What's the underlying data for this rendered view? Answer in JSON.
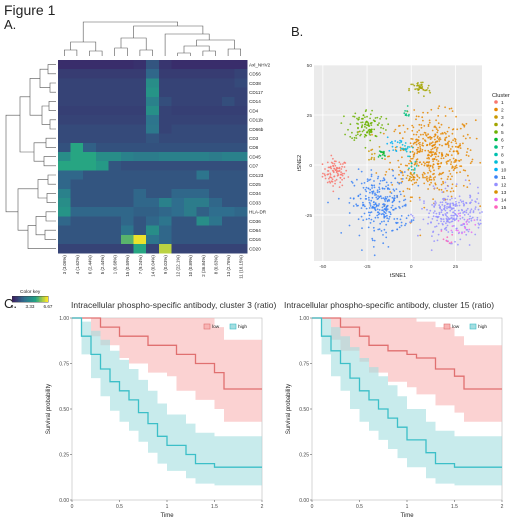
{
  "figure_title": "Figure 1",
  "panels": {
    "a": {
      "letter": "A."
    },
    "b": {
      "letter": "B."
    },
    "c": {
      "letter": "C."
    }
  },
  "chart_data": [
    {
      "type": "heatmap",
      "row_labels": [
        "Axl_NHV2",
        "CD56",
        "CD38",
        "CD117",
        "CD14",
        "CD4",
        "CD11b",
        "CD66b",
        "CD3",
        "CD8",
        "CD45",
        "CD7",
        "CD123",
        "CD25",
        "CD34",
        "CD33",
        "HLA-DR",
        "CD36",
        "CD64",
        "CD16",
        "CD20"
      ],
      "col_labels": [
        "3 (3.06%)",
        "4 (1.62%)",
        "6 (2.44%)",
        "5 (2.44%)",
        "1 (6.68%)",
        "15 (0.59%)",
        "7 (9.24%)",
        "14 (0.04%)",
        "9 (0.03%)",
        "12 (22.1%)",
        "10 (0.89%)",
        "2 (36.84%)",
        "8 (0.63%)",
        "13 (2.76%)",
        "11 (16.15%)"
      ],
      "values": [
        [
          0.4,
          0.4,
          0.4,
          0.4,
          0.4,
          0.4,
          0.5,
          1.5,
          0.6,
          0.4,
          0.4,
          0.4,
          0.4,
          0.4,
          0.4
        ],
        [
          0.8,
          0.8,
          0.8,
          0.8,
          0.8,
          0.8,
          0.8,
          2.0,
          0.8,
          0.8,
          0.8,
          0.8,
          0.8,
          0.8,
          1.0
        ],
        [
          1.0,
          1.0,
          1.0,
          1.0,
          1.0,
          1.0,
          1.0,
          3.5,
          1.0,
          1.0,
          1.0,
          1.0,
          1.0,
          1.0,
          1.2
        ],
        [
          1.0,
          1.0,
          1.0,
          1.0,
          1.0,
          1.0,
          1.0,
          3.8,
          1.0,
          1.0,
          1.0,
          1.0,
          1.0,
          1.0,
          1.0
        ],
        [
          1.0,
          1.0,
          1.0,
          1.0,
          1.0,
          1.0,
          1.0,
          3.0,
          1.3,
          1.0,
          1.0,
          1.0,
          1.0,
          1.3,
          1.0
        ],
        [
          0.9,
          0.9,
          0.9,
          0.9,
          0.9,
          0.9,
          0.9,
          3.6,
          1.0,
          0.9,
          0.9,
          0.9,
          0.9,
          0.9,
          0.9
        ],
        [
          1.0,
          1.0,
          1.0,
          1.0,
          1.0,
          1.0,
          1.0,
          2.5,
          1.0,
          1.0,
          1.0,
          1.0,
          1.0,
          1.0,
          1.0
        ],
        [
          1.2,
          1.2,
          1.2,
          1.2,
          1.2,
          1.2,
          1.2,
          2.6,
          1.0,
          1.2,
          1.2,
          1.2,
          1.2,
          1.2,
          1.2
        ],
        [
          1.2,
          1.2,
          1.2,
          1.2,
          1.2,
          1.2,
          1.2,
          1.5,
          1.2,
          1.2,
          1.2,
          1.2,
          1.2,
          1.2,
          1.2
        ],
        [
          1.4,
          4.5,
          1.8,
          1.4,
          1.4,
          1.4,
          1.4,
          1.4,
          1.4,
          1.4,
          1.4,
          1.4,
          1.4,
          1.4,
          1.4
        ],
        [
          3.5,
          4.5,
          4.5,
          3.5,
          3.5,
          3.0,
          2.8,
          2.8,
          3.0,
          3.0,
          3.0,
          3.0,
          2.8,
          3.0,
          3.0
        ],
        [
          4.5,
          4.5,
          4.5,
          4.0,
          1.5,
          1.3,
          1.3,
          1.3,
          1.3,
          1.3,
          1.3,
          1.3,
          1.3,
          1.3,
          1.3
        ],
        [
          2.0,
          2.0,
          1.5,
          1.5,
          1.5,
          1.5,
          1.5,
          1.5,
          1.5,
          1.5,
          1.5,
          2.5,
          1.5,
          1.5,
          1.5
        ],
        [
          2.0,
          1.5,
          1.5,
          1.5,
          1.5,
          1.5,
          1.5,
          1.5,
          1.5,
          1.5,
          1.5,
          1.5,
          1.5,
          1.5,
          1.5
        ],
        [
          3.0,
          1.5,
          1.5,
          1.5,
          1.5,
          1.5,
          2.0,
          1.5,
          1.5,
          2.0,
          2.0,
          2.0,
          1.5,
          1.5,
          1.5
        ],
        [
          3.5,
          1.5,
          1.5,
          1.5,
          1.5,
          1.5,
          2.0,
          2.0,
          3.0,
          2.2,
          2.8,
          2.8,
          2.0,
          1.5,
          1.5
        ],
        [
          3.8,
          2.0,
          2.0,
          2.0,
          2.0,
          2.0,
          1.8,
          1.8,
          2.0,
          2.2,
          2.8,
          1.8,
          2.2,
          2.2,
          2.0
        ],
        [
          2.0,
          1.5,
          1.5,
          1.5,
          1.5,
          2.0,
          1.5,
          2.0,
          2.5,
          1.5,
          1.5,
          3.5,
          2.5,
          1.5,
          1.5
        ],
        [
          1.5,
          1.5,
          1.5,
          1.5,
          1.5,
          2.5,
          1.5,
          3.5,
          2.0,
          1.5,
          1.5,
          1.5,
          1.5,
          1.5,
          1.5
        ],
        [
          1.5,
          1.5,
          1.5,
          1.5,
          1.5,
          5.0,
          6.5,
          2.5,
          2.0,
          1.5,
          1.5,
          1.5,
          1.5,
          1.5,
          1.5
        ],
        [
          1.0,
          1.0,
          1.0,
          1.0,
          1.0,
          1.0,
          4.5,
          1.0,
          6.0,
          1.0,
          1.0,
          1.0,
          1.0,
          1.0,
          1.0
        ]
      ],
      "color_key": {
        "title": "Color key",
        "ticks": [
          "0",
          "3.33",
          "6.67"
        ],
        "range": [
          0,
          6.67
        ],
        "colors": [
          "#3b1f63",
          "#2f6f8e",
          "#22a384",
          "#fde725"
        ]
      }
    },
    {
      "type": "scatter",
      "xlabel": "tSNE1",
      "ylabel": "tSNE2",
      "xlim": [
        -55,
        40
      ],
      "ylim": [
        -48,
        50
      ],
      "x_ticks": [
        "-50",
        "-25",
        "0",
        "25"
      ],
      "y_ticks": [
        "50",
        "25",
        "0",
        "-25"
      ],
      "legend": {
        "title": "Cluster",
        "placement": "right",
        "entries": [
          "1",
          "2",
          "3",
          "4",
          "5",
          "6",
          "7",
          "8",
          "9",
          "10",
          "11",
          "12",
          "13",
          "14",
          "15"
        ]
      },
      "clusters": [
        {
          "name": "1",
          "color": "#f8766d",
          "cx": -43,
          "cy": -4,
          "sx": 3.5,
          "sy": 3.5,
          "n": 90
        },
        {
          "name": "2",
          "color": "#e58700",
          "cx": 12,
          "cy": 5,
          "sx": 12,
          "sy": 10,
          "n": 480
        },
        {
          "name": "3",
          "color": "#c99800",
          "cx": -22,
          "cy": 5,
          "sx": 2,
          "sy": 2,
          "n": 10
        },
        {
          "name": "4",
          "color": "#a3a500",
          "cx": 5,
          "cy": 38,
          "sx": 3,
          "sy": 2,
          "n": 40
        },
        {
          "name": "5",
          "color": "#6bb100",
          "cx": -25,
          "cy": 20,
          "sx": 5,
          "sy": 4,
          "n": 110
        },
        {
          "name": "6",
          "color": "#00ba38",
          "cx": -17,
          "cy": 5,
          "sx": 1.5,
          "sy": 1.5,
          "n": 15
        },
        {
          "name": "7",
          "color": "#00bf7d",
          "cx": -3,
          "cy": 26,
          "sx": 1.5,
          "sy": 1.5,
          "n": 10
        },
        {
          "name": "8",
          "color": "#00c0af",
          "cx": 0,
          "cy": -1,
          "sx": 1.5,
          "sy": 1.5,
          "n": 10
        },
        {
          "name": "9",
          "color": "#00bcd8",
          "cx": -4,
          "cy": 8,
          "sx": 2,
          "sy": 2,
          "n": 20
        },
        {
          "name": "10",
          "color": "#00b0f6",
          "cx": -10,
          "cy": 10,
          "sx": 2,
          "sy": 2,
          "n": 15
        },
        {
          "name": "11",
          "color": "#3b82f6",
          "cx": -17,
          "cy": -20,
          "sx": 8,
          "sy": 8,
          "n": 280
        },
        {
          "name": "12",
          "color": "#9590ff",
          "cx": 23,
          "cy": -25,
          "sx": 9,
          "sy": 6,
          "n": 260
        },
        {
          "name": "13",
          "color": "#d89000",
          "cx": 0,
          "cy": -6,
          "sx": 2,
          "sy": 2,
          "n": 12
        },
        {
          "name": "14",
          "color": "#e76bf3",
          "cx": 30,
          "cy": -30,
          "sx": 3,
          "sy": 3,
          "n": 20
        },
        {
          "name": "15",
          "color": "#ff62bc",
          "cx": 20,
          "cy": -38,
          "sx": 2,
          "sy": 2,
          "n": 8
        }
      ]
    },
    {
      "type": "line",
      "title": "Intracellular phospho-specific antibody, cluster 3 (ratio)",
      "xlabel": "Time",
      "ylabel": "Survival probability",
      "xlim": [
        0,
        2
      ],
      "ylim": [
        0,
        1
      ],
      "x_ticks": [
        "0",
        "0.5",
        "1",
        "1.5",
        "2"
      ],
      "y_ticks": [
        "0.00",
        "0.25",
        "0.50",
        "0.75",
        "1.00"
      ],
      "legend": {
        "placement": "top-right",
        "entries": [
          "low",
          "high"
        ]
      },
      "series": [
        {
          "name": "low",
          "color": "#e07070",
          "band": "#f8b4b4",
          "x": [
            0,
            0.2,
            0.3,
            0.5,
            0.6,
            0.8,
            1.0,
            1.1,
            1.3,
            1.5,
            1.6,
            2.0
          ],
          "y": [
            1.0,
            1.0,
            0.95,
            0.9,
            0.9,
            0.85,
            0.85,
            0.8,
            0.75,
            0.7,
            0.61,
            0.61
          ],
          "lo": [
            1.0,
            0.9,
            0.85,
            0.78,
            0.75,
            0.7,
            0.68,
            0.6,
            0.55,
            0.5,
            0.43,
            0.43
          ],
          "hi": [
            1.0,
            1.0,
            1.0,
            1.0,
            1.0,
            1.0,
            1.0,
            1.0,
            1.0,
            0.95,
            0.88,
            0.88
          ]
        },
        {
          "name": "high",
          "color": "#3cbfc8",
          "band": "#a4dde0",
          "x": [
            0,
            0.1,
            0.2,
            0.3,
            0.4,
            0.5,
            0.6,
            0.7,
            0.8,
            0.9,
            1.0,
            1.2,
            1.3,
            1.5,
            2.0
          ],
          "y": [
            1.0,
            0.9,
            0.8,
            0.72,
            0.65,
            0.6,
            0.55,
            0.48,
            0.42,
            0.35,
            0.3,
            0.25,
            0.2,
            0.18,
            0.18
          ],
          "lo": [
            1.0,
            0.8,
            0.67,
            0.57,
            0.49,
            0.43,
            0.38,
            0.32,
            0.26,
            0.2,
            0.16,
            0.12,
            0.09,
            0.08,
            0.08
          ],
          "hi": [
            1.0,
            0.98,
            0.93,
            0.88,
            0.82,
            0.77,
            0.72,
            0.66,
            0.6,
            0.53,
            0.47,
            0.42,
            0.37,
            0.35,
            0.35
          ]
        }
      ]
    },
    {
      "type": "line",
      "title": "Intracellular phospho-specific antibody, cluster 15 (ratio)",
      "xlabel": "Time",
      "ylabel": "Survival probability",
      "xlim": [
        0,
        2
      ],
      "ylim": [
        0,
        1
      ],
      "x_ticks": [
        "0",
        "0.5",
        "1",
        "1.5",
        "2"
      ],
      "y_ticks": [
        "0.00",
        "0.25",
        "0.50",
        "0.75",
        "1.00"
      ],
      "legend": {
        "placement": "top-right",
        "entries": [
          "low",
          "high"
        ]
      },
      "series": [
        {
          "name": "low",
          "color": "#e07070",
          "band": "#f8b4b4",
          "x": [
            0,
            0.2,
            0.3,
            0.5,
            0.6,
            0.8,
            1.0,
            1.1,
            1.3,
            1.5,
            1.6,
            2.0
          ],
          "y": [
            1.0,
            1.0,
            0.95,
            0.9,
            0.85,
            0.82,
            0.8,
            0.78,
            0.72,
            0.68,
            0.61,
            0.61
          ],
          "lo": [
            1.0,
            0.88,
            0.82,
            0.76,
            0.7,
            0.65,
            0.62,
            0.58,
            0.52,
            0.48,
            0.43,
            0.43
          ],
          "hi": [
            1.0,
            1.0,
            1.0,
            1.0,
            1.0,
            1.0,
            1.0,
            0.98,
            0.95,
            0.9,
            0.85,
            0.85
          ]
        },
        {
          "name": "high",
          "color": "#3cbfc8",
          "band": "#a4dde0",
          "x": [
            0,
            0.1,
            0.2,
            0.3,
            0.4,
            0.5,
            0.6,
            0.7,
            0.8,
            0.9,
            1.0,
            1.2,
            1.3,
            1.5,
            2.0
          ],
          "y": [
            1.0,
            0.9,
            0.82,
            0.75,
            0.67,
            0.6,
            0.55,
            0.5,
            0.45,
            0.4,
            0.33,
            0.26,
            0.2,
            0.18,
            0.18
          ],
          "lo": [
            1.0,
            0.8,
            0.68,
            0.6,
            0.5,
            0.43,
            0.38,
            0.33,
            0.28,
            0.23,
            0.18,
            0.12,
            0.09,
            0.08,
            0.08
          ],
          "hi": [
            1.0,
            1.0,
            0.95,
            0.9,
            0.84,
            0.78,
            0.73,
            0.68,
            0.63,
            0.57,
            0.5,
            0.43,
            0.38,
            0.35,
            0.35
          ]
        }
      ]
    }
  ]
}
